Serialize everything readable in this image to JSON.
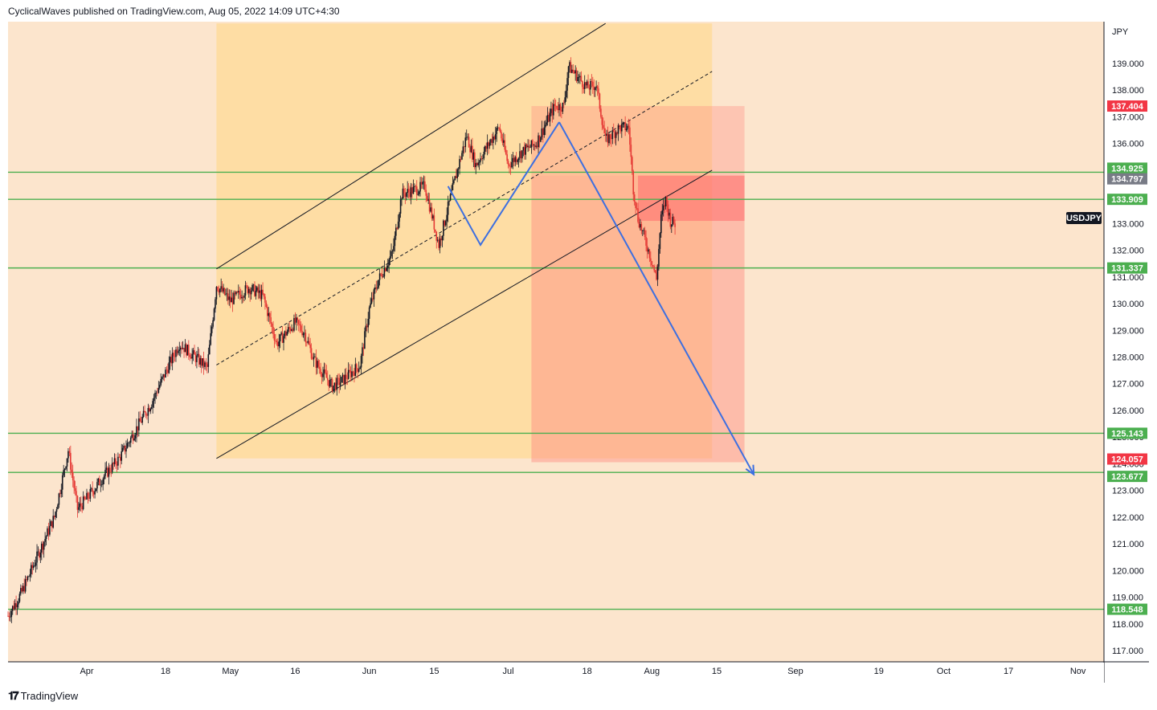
{
  "header": {
    "publisher_line": "CyclicalWaves published on TradingView.com, Aug 05, 2022 14:09 UTC+4:30"
  },
  "footer": {
    "brand": "TradingView"
  },
  "colors": {
    "background": "#fce5cd",
    "channel_fill": "#ffd996",
    "zone_fill": "#ff8a80",
    "support_line": "#4caf50",
    "projection_line": "#3d6fe0",
    "tag_green": "#4caf50",
    "tag_red": "#f23645",
    "tag_gray": "#787b86",
    "tag_black": "#131722"
  },
  "chart_data": {
    "type": "candlestick",
    "symbol": "USDJPY",
    "currency": "JPY",
    "ylim": [
      116.5,
      140.5
    ],
    "y_ticks": [
      117,
      118,
      119,
      120,
      121,
      122,
      123,
      124,
      125,
      126,
      127,
      128,
      129,
      130,
      131,
      132,
      133,
      134,
      135,
      136,
      137,
      138,
      139
    ],
    "x_ticks": [
      {
        "label": "Apr",
        "date": "2022-04-01"
      },
      {
        "label": "18",
        "date": "2022-04-18"
      },
      {
        "label": "May",
        "date": "2022-05-02"
      },
      {
        "label": "16",
        "date": "2022-05-16"
      },
      {
        "label": "Jun",
        "date": "2022-06-01"
      },
      {
        "label": "15",
        "date": "2022-06-15"
      },
      {
        "label": "Jul",
        "date": "2022-07-01"
      },
      {
        "label": "18",
        "date": "2022-07-18"
      },
      {
        "label": "Aug",
        "date": "2022-08-01"
      },
      {
        "label": "15",
        "date": "2022-08-15"
      },
      {
        "label": "Sep",
        "date": "2022-09-01"
      },
      {
        "label": "19",
        "date": "2022-09-19"
      },
      {
        "label": "Oct",
        "date": "2022-10-03"
      },
      {
        "label": "17",
        "date": "2022-10-17"
      },
      {
        "label": "Nov",
        "date": "2022-11-01"
      }
    ],
    "price_path": [
      [
        "2022-03-15",
        118.3
      ],
      [
        "2022-03-18",
        119.2
      ],
      [
        "2022-03-22",
        120.8
      ],
      [
        "2022-03-25",
        122.0
      ],
      [
        "2022-03-28",
        124.5
      ],
      [
        "2022-03-30",
        122.3
      ],
      [
        "2022-04-01",
        122.7
      ],
      [
        "2022-04-05",
        123.6
      ],
      [
        "2022-04-08",
        124.2
      ],
      [
        "2022-04-12",
        125.4
      ],
      [
        "2022-04-15",
        126.3
      ],
      [
        "2022-04-19",
        127.8
      ],
      [
        "2022-04-21",
        128.5
      ],
      [
        "2022-04-25",
        127.9
      ],
      [
        "2022-04-27",
        127.6
      ],
      [
        "2022-04-29",
        130.7
      ],
      [
        "2022-05-02",
        130.1
      ],
      [
        "2022-05-06",
        130.6
      ],
      [
        "2022-05-09",
        130.3
      ],
      [
        "2022-05-12",
        128.5
      ],
      [
        "2022-05-16",
        129.3
      ],
      [
        "2022-05-18",
        128.9
      ],
      [
        "2022-05-20",
        127.9
      ],
      [
        "2022-05-24",
        126.9
      ],
      [
        "2022-05-26",
        127.1
      ],
      [
        "2022-05-30",
        127.7
      ],
      [
        "2022-06-01",
        129.8
      ],
      [
        "2022-06-03",
        130.9
      ],
      [
        "2022-06-06",
        131.9
      ],
      [
        "2022-06-08",
        134.1
      ],
      [
        "2022-06-13",
        134.4
      ],
      [
        "2022-06-16",
        132.2
      ],
      [
        "2022-06-20",
        135.0
      ],
      [
        "2022-06-22",
        136.3
      ],
      [
        "2022-06-24",
        135.2
      ],
      [
        "2022-06-29",
        136.6
      ],
      [
        "2022-07-01",
        135.2
      ],
      [
        "2022-07-04",
        135.7
      ],
      [
        "2022-07-07",
        136.0
      ],
      [
        "2022-07-11",
        137.4
      ],
      [
        "2022-07-13",
        137.4
      ],
      [
        "2022-07-14",
        138.9
      ],
      [
        "2022-07-18",
        138.1
      ],
      [
        "2022-07-20",
        138.2
      ],
      [
        "2022-07-22",
        136.1
      ],
      [
        "2022-07-25",
        136.6
      ],
      [
        "2022-07-27",
        136.6
      ],
      [
        "2022-07-28",
        134.3
      ],
      [
        "2022-07-29",
        133.2
      ],
      [
        "2022-08-01",
        131.6
      ],
      [
        "2022-08-02",
        130.9
      ],
      [
        "2022-08-03",
        133.2
      ],
      [
        "2022-08-04",
        133.9
      ],
      [
        "2022-08-05",
        133.1
      ],
      [
        "2022-08-06",
        133.0
      ]
    ],
    "horizontal_levels": [
      134.925,
      133.909,
      131.337,
      125.143,
      123.677,
      118.548
    ],
    "channel": {
      "lower": [
        [
          "2022-04-29",
          124.2
        ],
        [
          "2022-08-14",
          135.0
        ]
      ],
      "upper": [
        [
          "2022-04-29",
          131.3
        ],
        [
          "2022-07-22",
          140.5
        ]
      ],
      "midline": [
        [
          "2022-04-29",
          127.7
        ],
        [
          "2022-08-14",
          138.7
        ]
      ]
    },
    "channel_box": {
      "from": "2022-04-29",
      "to": "2022-08-14",
      "low": 124.2,
      "high": 140.5
    },
    "short_position": {
      "from": "2022-07-06",
      "to": "2022-08-21",
      "entry": 134.797,
      "stop": 137.404,
      "target": 124.057,
      "active_zone_low": 133.1
    },
    "zigzag": [
      [
        "2022-06-18",
        134.4
      ],
      [
        "2022-06-25",
        132.2
      ],
      [
        "2022-07-12",
        136.8
      ]
    ],
    "projection_arrow": [
      [
        "2022-07-12",
        136.8
      ],
      [
        "2022-08-23",
        123.6
      ]
    ],
    "price_tags": [
      {
        "label": "137.404",
        "value": 137.404,
        "color": "red"
      },
      {
        "label": "134.925",
        "value": 134.925,
        "color": "green"
      },
      {
        "label": "134.797",
        "value": 134.797,
        "color": "gray"
      },
      {
        "label": "133.909",
        "value": 133.909,
        "color": "green"
      },
      {
        "label": "131.337",
        "value": 131.337,
        "color": "green"
      },
      {
        "label": "125.143",
        "value": 125.143,
        "color": "green"
      },
      {
        "label": "124.057",
        "value": 124.057,
        "color": "red"
      },
      {
        "label": "123.677",
        "value": 123.677,
        "color": "green"
      },
      {
        "label": "118.548",
        "value": 118.548,
        "color": "green"
      }
    ],
    "symbol_tag": {
      "label": "USDJPY",
      "value": 133.1
    }
  }
}
